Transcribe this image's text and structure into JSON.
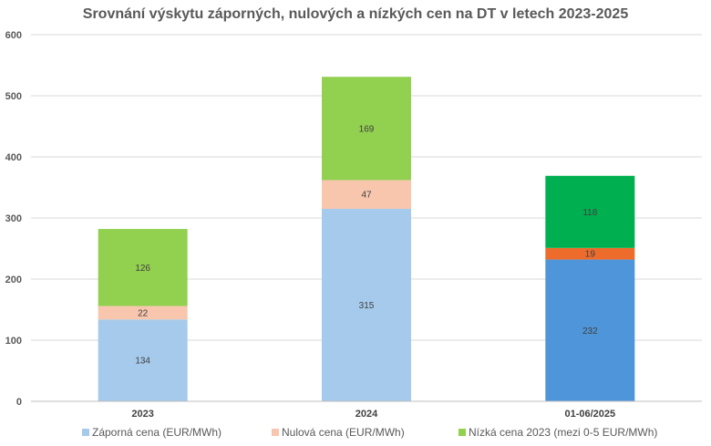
{
  "chart_data": {
    "type": "bar",
    "stacked": true,
    "title": "Srovnání výskytu záporných, nulových a nízkých cen na DT v letech 2023-2025",
    "categories": [
      "2023",
      "2024",
      "01-06/2025"
    ],
    "ylim": [
      0,
      600
    ],
    "yticks": [
      0,
      100,
      200,
      300,
      400,
      500,
      600
    ],
    "grid": true,
    "legend_position": "bottom",
    "series": [
      {
        "name": "Záporná cena (EUR/MWh)",
        "values": [
          134,
          315,
          232
        ],
        "colors": [
          "#a6caeb",
          "#a6caeb",
          "#4f95d9"
        ],
        "legend_color": "#a6caeb"
      },
      {
        "name": "Nulová cena (EUR/MWh)",
        "values": [
          22,
          47,
          19
        ],
        "colors": [
          "#f7c6ad",
          "#f7c6ad",
          "#ed6c2c"
        ],
        "legend_color": "#f7c6ad"
      },
      {
        "name": "Nízká cena 2023 (mezi 0-5 EUR/MWh)",
        "values": [
          126,
          169,
          118
        ],
        "colors": [
          "#92d050",
          "#92d050",
          "#00b050"
        ],
        "legend_color": "#92d050"
      }
    ]
  }
}
